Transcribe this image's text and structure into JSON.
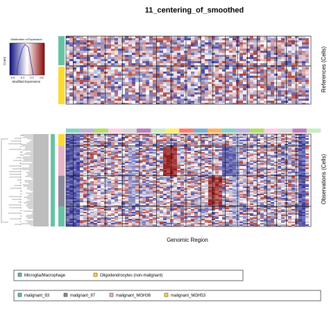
{
  "title": "11_centering_of_smoothed",
  "references_label": "References (Cells)",
  "observations_label": "Observations (Cells)",
  "x_label": "Genomic Region",
  "color_key": {
    "title": "Distribution of Expression",
    "x_label": "Modified Expression",
    "y_label": "Count",
    "xticks": [
      "-0.6",
      "-0.2",
      "0.2",
      "0.6"
    ]
  },
  "legend_references": [
    {
      "name": "Microglia/Macrophage",
      "color": "#66c2a5"
    },
    {
      "name": "Oligodendrocytes (non-malignant)",
      "color": "#ffd92f"
    }
  ],
  "legend_observations": [
    {
      "name": "malignant_93",
      "color": "#66c2a5"
    },
    {
      "name": "malignant_97",
      "color": "#8e8a9c"
    },
    {
      "name": "malignant_MGH36",
      "color": "#e7b3c9"
    },
    {
      "name": "malignant_MGH53",
      "color": "#ffd92f"
    }
  ]
}
